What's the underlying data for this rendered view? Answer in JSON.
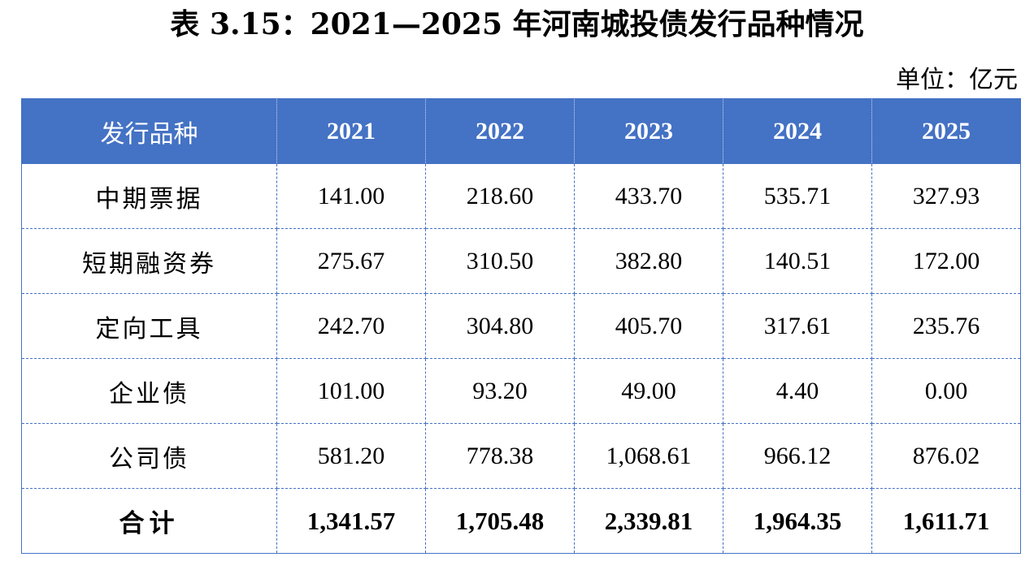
{
  "title": "表 3.15：2021—2025 年河南城投债发行品种情况",
  "unit": "单位：亿元",
  "table": {
    "header": {
      "category": "发行品种",
      "years": [
        "2021",
        "2022",
        "2023",
        "2024",
        "2025"
      ]
    },
    "rows": [
      {
        "category": "中期票据",
        "values": [
          "141.00",
          "218.60",
          "433.70",
          "535.71",
          "327.93"
        ]
      },
      {
        "category": "短期融资券",
        "values": [
          "275.67",
          "310.50",
          "382.80",
          "140.51",
          "172.00"
        ]
      },
      {
        "category": "定向工具",
        "values": [
          "242.70",
          "304.80",
          "405.70",
          "317.61",
          "235.76"
        ]
      },
      {
        "category": "企业债",
        "values": [
          "101.00",
          "93.20",
          "49.00",
          "4.40",
          "0.00"
        ]
      },
      {
        "category": "公司债",
        "values": [
          "581.20",
          "778.38",
          "1,068.61",
          "966.12",
          "876.02"
        ]
      }
    ],
    "total": {
      "category": "合计",
      "values": [
        "1,341.57",
        "1,705.48",
        "2,339.81",
        "1,964.35",
        "1,611.71"
      ]
    }
  },
  "colors": {
    "header_bg": "#4472c4",
    "header_text": "#ffffff",
    "border": "#4472c4"
  }
}
